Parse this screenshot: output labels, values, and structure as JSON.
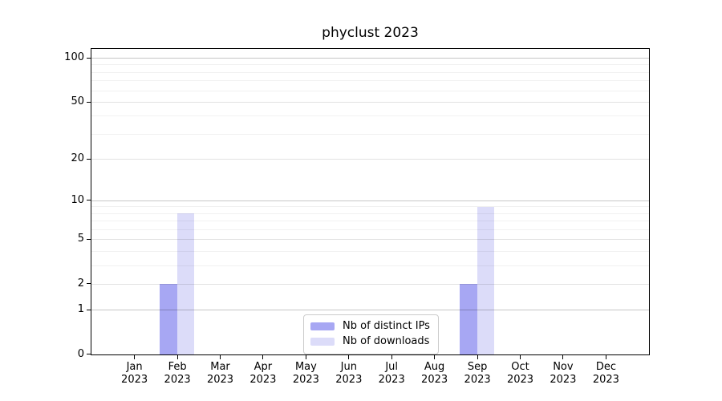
{
  "chart_data": {
    "type": "bar",
    "title": "phyclust 2023",
    "categories": [
      "Jan",
      "Feb",
      "Mar",
      "Apr",
      "May",
      "Jun",
      "Jul",
      "Aug",
      "Sep",
      "Oct",
      "Nov",
      "Dec"
    ],
    "category_year": "2023",
    "series": [
      {
        "name": "Nb of distinct IPs",
        "color": "#a7a7f3",
        "values": [
          0,
          2,
          0,
          0,
          0,
          0,
          0,
          0,
          2,
          0,
          0,
          0
        ]
      },
      {
        "name": "Nb of downloads",
        "color": "#dcdcf9",
        "values": [
          0,
          8,
          0,
          0,
          0,
          0,
          0,
          0,
          9,
          0,
          0,
          0
        ]
      }
    ],
    "y_scale": "log1p",
    "y_axis_ticks": [
      0,
      1,
      2,
      5,
      10,
      20,
      50,
      100
    ],
    "y_minor_gridlines": [
      3,
      4,
      6,
      7,
      8,
      9,
      30,
      40,
      60,
      70,
      80,
      90
    ],
    "y_max": 115,
    "xlabel": "",
    "ylabel": "",
    "grid": "horizontal",
    "legend_position": "bottom-center"
  },
  "colors": {
    "background": "#ffffff",
    "axis": "#000000",
    "legend_border": "#cccccc",
    "bar_distinct_ips": "#a7a7f3",
    "bar_downloads": "#dcdcf9"
  }
}
